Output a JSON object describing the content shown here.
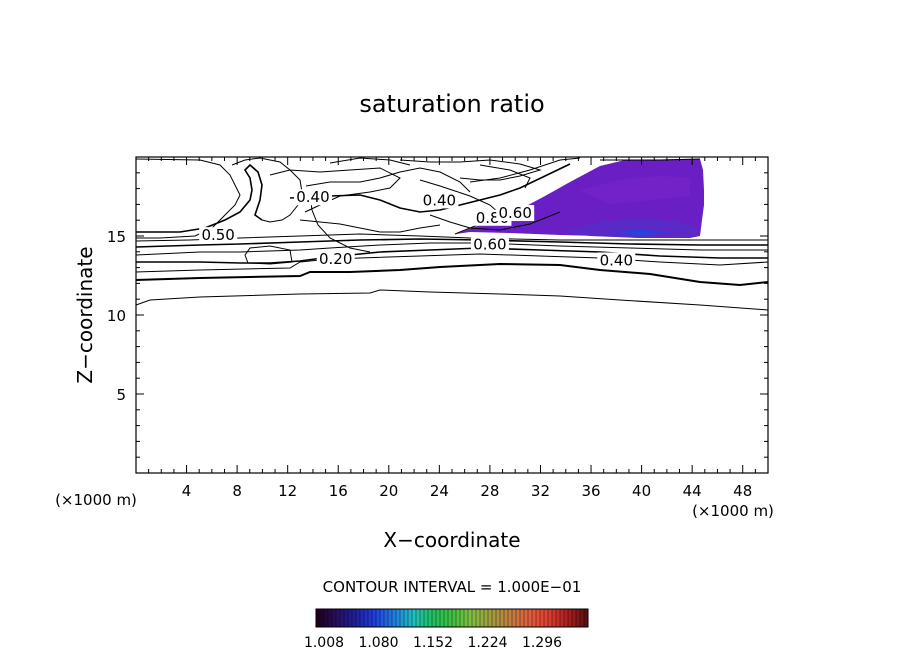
{
  "chart_data": {
    "type": "contour",
    "title": "saturation ratio",
    "xlabel": "X−coordinate",
    "ylabel": "Z−coordinate",
    "x_unit_left": "(×1000 m)",
    "x_unit_right": "(×1000 m)",
    "xlim": [
      0,
      50
    ],
    "ylim": [
      0,
      20
    ],
    "x_ticks": [
      4,
      8,
      12,
      16,
      20,
      24,
      28,
      32,
      36,
      40,
      44,
      48
    ],
    "y_ticks": [
      5,
      10,
      15
    ],
    "contour_interval_text": "CONTOUR INTERVAL = 1.000E−01",
    "contour_labels": [
      {
        "text": "0.40",
        "x": 14.0,
        "y": 17.2
      },
      {
        "text": "0.40",
        "x": 24.0,
        "y": 17.0
      },
      {
        "text": "0.50",
        "x": 6.5,
        "y": 14.8
      },
      {
        "text": "0.20",
        "x": 15.8,
        "y": 13.3
      },
      {
        "text": "0.60",
        "x": 28.0,
        "y": 14.2
      },
      {
        "text": "0.40",
        "x": 38.0,
        "y": 13.2
      },
      {
        "text": "0.80",
        "x": 28.2,
        "y": 15.9
      },
      {
        "text": "0.60",
        "x": 30.0,
        "y": 16.2
      }
    ],
    "colorbar": {
      "ticks": [
        "1.008",
        "1.080",
        "1.152",
        "1.224",
        "1.296"
      ],
      "colors": [
        "#200020",
        "#281060",
        "#2020a0",
        "#2040e0",
        "#2080e0",
        "#20c0c0",
        "#20c060",
        "#40c040",
        "#80c040",
        "#a0a040",
        "#c08040",
        "#e06040",
        "#e04030",
        "#b02020",
        "#601010"
      ]
    },
    "supersaturation_region": {
      "color": "#6a1fc4",
      "x_range": [
        26.5,
        44.8
      ],
      "y_range": [
        14.8,
        19.8
      ]
    }
  }
}
